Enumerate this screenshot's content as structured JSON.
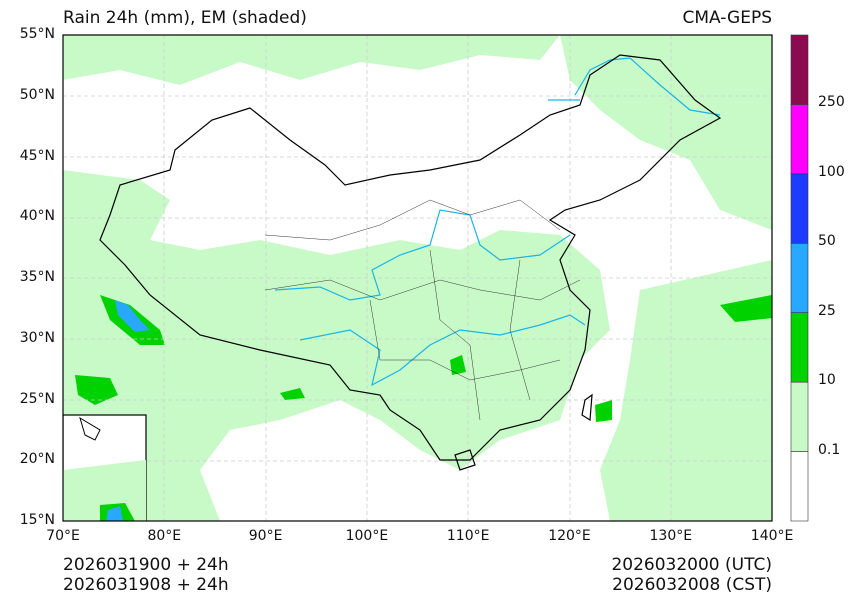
{
  "title_left": "Rain 24h (mm), EM (shaded)",
  "title_right": "CMA-GEPS",
  "lat_ticks": [
    "55°N",
    "50°N",
    "45°N",
    "40°N",
    "35°N",
    "30°N",
    "25°N",
    "20°N",
    "15°N"
  ],
  "lon_ticks": [
    "70°E",
    "80°E",
    "90°E",
    "100°E",
    "110°E",
    "120°E",
    "130°E",
    "140°E"
  ],
  "colorbar": {
    "labels": [
      "0.1",
      "10",
      "25",
      "50",
      "100",
      "250"
    ],
    "colors": [
      "#ffffff",
      "#c8fac8",
      "#00d200",
      "#28a8ff",
      "#1e3cff",
      "#ff00ff",
      "#8c0a50"
    ]
  },
  "footer": {
    "init_utc": "2026031900 + 24h",
    "init_cst": "2026031908 + 24h",
    "valid_utc": "2026032000 (UTC)",
    "valid_cst": "2026032008 (CST)"
  }
}
